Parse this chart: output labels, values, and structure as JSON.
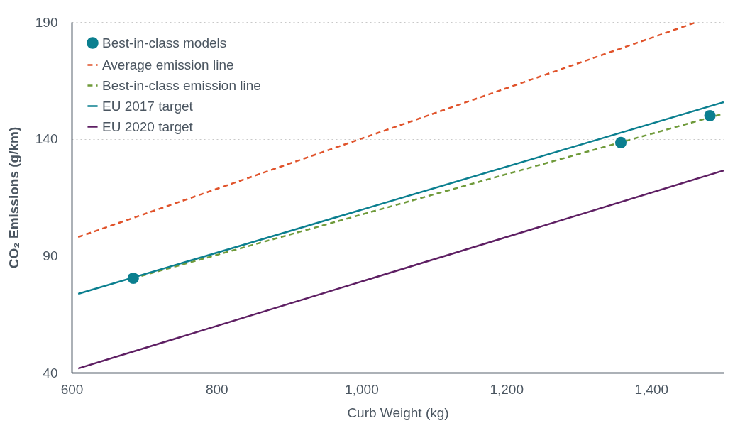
{
  "chart_data": {
    "type": "line",
    "xlabel": "Curb Weight (kg)",
    "ylabel": "CO₂ Emissions (g/km)",
    "xlim": [
      600,
      1500
    ],
    "ylim": [
      40,
      190
    ],
    "xticks": [
      600,
      800,
      {
        "value": 1000,
        "label": "1,000"
      },
      {
        "value": 1200,
        "label": "1,200"
      },
      {
        "value": 1400,
        "label": "1,400"
      }
    ],
    "yticks": [
      40,
      90,
      140,
      190
    ],
    "grid": "y",
    "legend": "top left",
    "series": [
      {
        "name": "Best-in-class models",
        "type": "scatter",
        "marker": "circle",
        "color": "#0b7f8f",
        "x": [
          685,
          1358,
          1481
        ],
        "values": [
          80.4,
          138.4,
          149.9
        ]
      },
      {
        "name": "Average emission line",
        "type": "line",
        "line_style": "dashed",
        "color": "#e0532b",
        "x": [
          609,
          1463
        ],
        "values": [
          98,
          190
        ]
      },
      {
        "name": "Best-in-class emission line",
        "type": "line",
        "line_style": "dashed",
        "color": "#6f9a3a",
        "x": [
          685,
          1500
        ],
        "values": [
          80.4,
          150.8
        ]
      },
      {
        "name": "EU 2017 target",
        "type": "line",
        "line_style": "solid",
        "color": "#0b7f8f",
        "x": [
          609,
          1500
        ],
        "values": [
          73.7,
          155.7
        ]
      },
      {
        "name": "EU 2020 target",
        "type": "line",
        "line_style": "solid",
        "color": "#5e1f63",
        "x": [
          609,
          1500
        ],
        "values": [
          41.8,
          126.5
        ]
      }
    ]
  }
}
